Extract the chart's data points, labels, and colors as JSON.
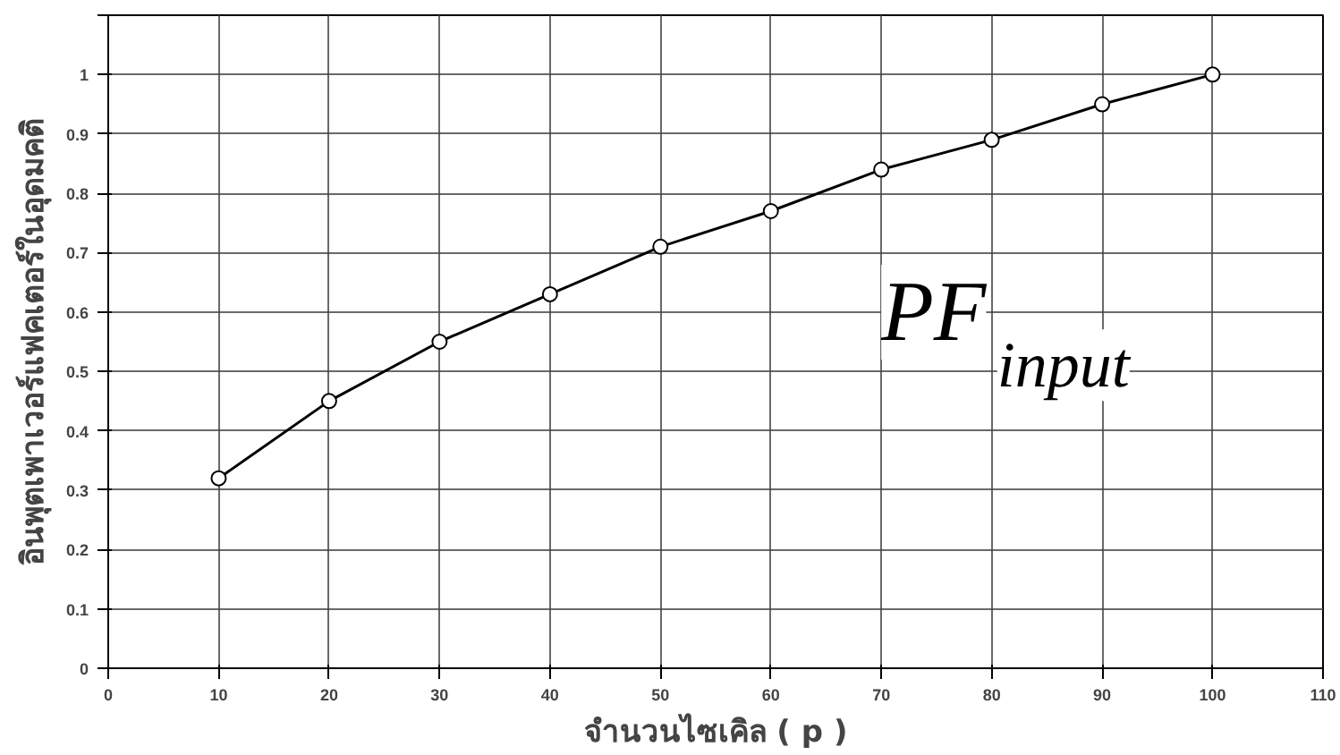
{
  "chart_data": {
    "type": "line",
    "xlabel": "จำนวนไซเคิล ( p )",
    "ylabel": "อินพุตเพาเวอร์แฟคเตอร์ในอุดมคติ",
    "x": [
      10,
      20,
      30,
      40,
      50,
      60,
      70,
      80,
      90,
      100
    ],
    "series": [
      {
        "color": "#000000",
        "values": [
          0.32,
          0.45,
          0.55,
          0.63,
          0.71,
          0.77,
          0.84,
          0.89,
          0.95,
          1.0
        ]
      }
    ],
    "xlim": [
      0,
      110
    ],
    "xticks": [
      0,
      10,
      20,
      30,
      40,
      50,
      60,
      70,
      80,
      90,
      100,
      110
    ],
    "ylim": [
      0,
      1.1
    ],
    "yticks": [
      0,
      0.1,
      0.2,
      0.3,
      0.4,
      0.5,
      0.6,
      0.7,
      0.8,
      0.9,
      1,
      {
        "value": 1.1,
        "label": null
      }
    ],
    "annotations": [
      "PF$_{input}$"
    ],
    "grid": true,
    "marker": "circle",
    "line_style": "solid"
  }
}
